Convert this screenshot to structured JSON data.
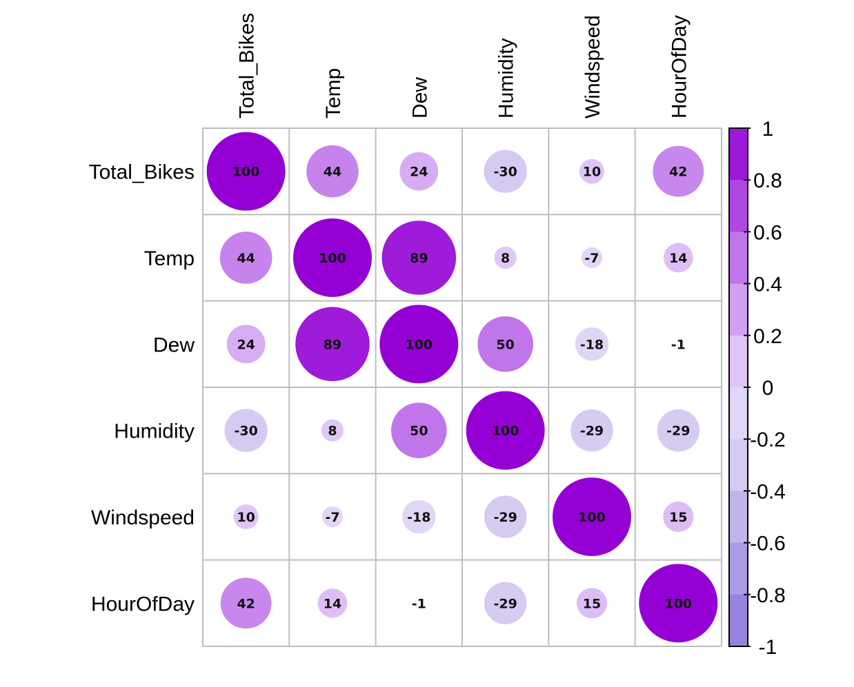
{
  "chart_data": {
    "type": "heatmap",
    "variables": [
      "Total_Bikes",
      "Temp",
      "Dew",
      "Humidity",
      "Windspeed",
      "HourOfDay"
    ],
    "matrix": [
      [
        100,
        44,
        24,
        -30,
        10,
        42
      ],
      [
        44,
        100,
        89,
        8,
        -7,
        14
      ],
      [
        24,
        89,
        100,
        50,
        -18,
        -1
      ],
      [
        -30,
        8,
        50,
        100,
        -29,
        -29
      ],
      [
        10,
        -7,
        -18,
        -29,
        100,
        15
      ],
      [
        42,
        14,
        -1,
        -29,
        15,
        100
      ]
    ],
    "value_display": "percent",
    "glyph": "circle",
    "colorbar": {
      "range": [
        -1,
        1
      ],
      "ticks": [
        "1",
        "0.8",
        "0.6",
        "0.4",
        "0.2",
        "0",
        "-0.2",
        "-0.4",
        "-0.6",
        "-0.8",
        "-1"
      ],
      "colors_top_to_bottom": [
        "#9400D3",
        "#A632DD",
        "#B85EE6",
        "#C98CEE",
        "#D9B5F4",
        "#E5D5F8",
        "#DFD6F5",
        "#CBC0EE",
        "#B6A8E7",
        "#A190E0",
        "#8E76DA"
      ]
    },
    "grid": true
  }
}
